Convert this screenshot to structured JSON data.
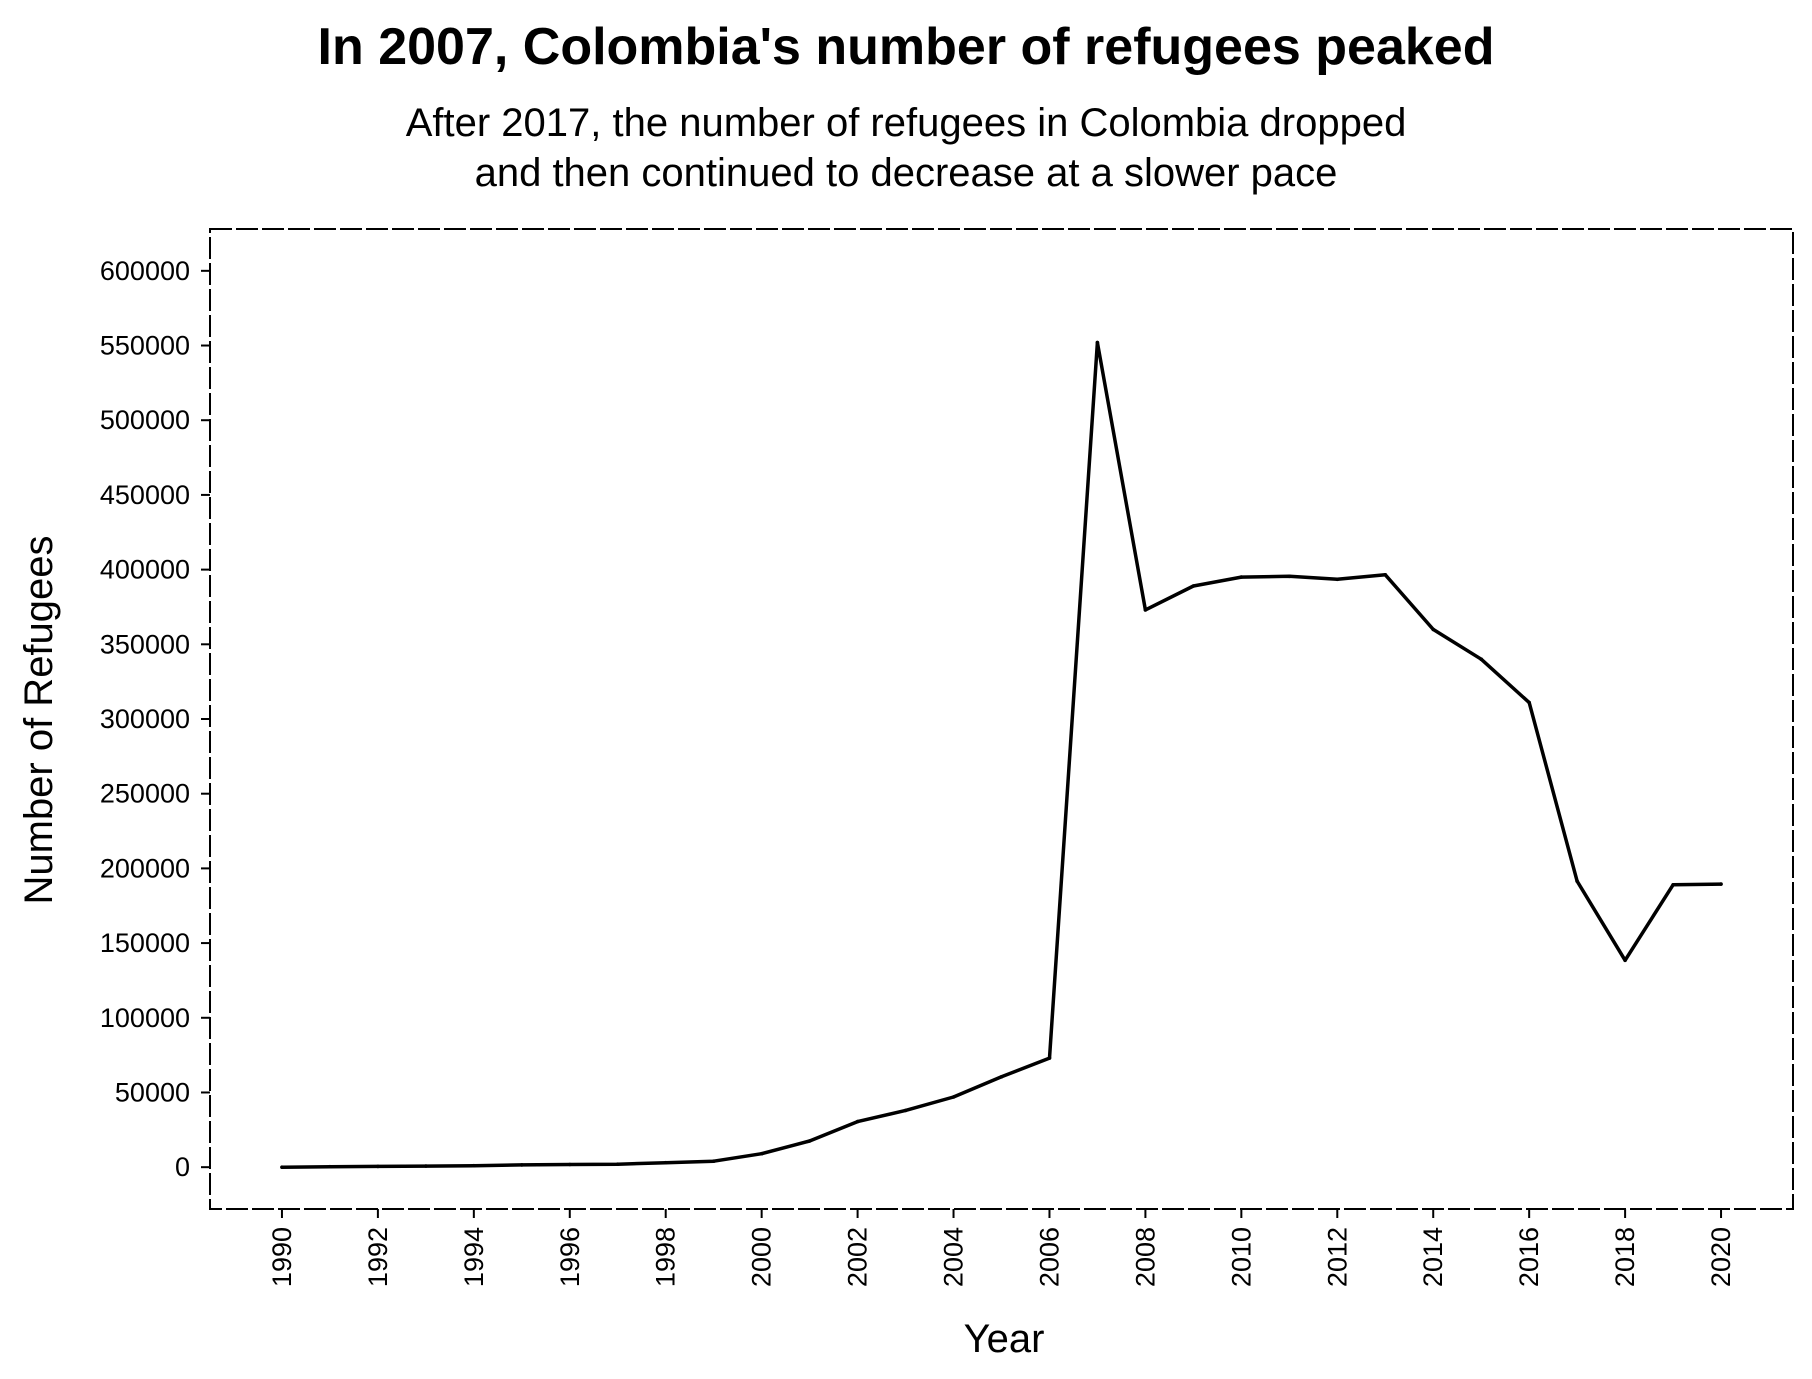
{
  "chart_data": {
    "type": "line",
    "title": "In 2007, Colombia's number of refugees peaked",
    "subtitle_lines": [
      "After 2017, the number of refugees in Colombia dropped",
      "and then continued to decrease at a slower pace"
    ],
    "xlabel": "Year",
    "ylabel": "Number of Refugees",
    "xlim": [
      1988.5,
      2021.5
    ],
    "ylim": [
      -28000,
      628000
    ],
    "xticks": [
      "1990",
      "1992",
      "1994",
      "1996",
      "1998",
      "2000",
      "2002",
      "2004",
      "2006",
      "2008",
      "2010",
      "2012",
      "2014",
      "2016",
      "2018",
      "2020"
    ],
    "yticks": [
      "0",
      "50000",
      "100000",
      "150000",
      "200000",
      "250000",
      "300000",
      "350000",
      "400000",
      "450000",
      "500000",
      "550000",
      "600000"
    ],
    "grid": false,
    "legend": "none",
    "line_color": "#000000",
    "x": [
      1990,
      1991,
      1992,
      1993,
      1994,
      1995,
      1996,
      1997,
      1998,
      1999,
      2000,
      2001,
      2002,
      2003,
      2004,
      2005,
      2006,
      2007,
      2008,
      2009,
      2010,
      2011,
      2012,
      2013,
      2014,
      2015,
      2016,
      2017,
      2018,
      2019,
      2020
    ],
    "values": [
      0,
      300,
      500,
      700,
      1000,
      1500,
      1800,
      2000,
      3000,
      4000,
      9000,
      17500,
      30500,
      38000,
      47000,
      60500,
      73000,
      552000,
      373000,
      389000,
      395000,
      395500,
      393500,
      396500,
      360000,
      340000,
      311000,
      191500,
      138500,
      189000,
      189500
    ]
  }
}
